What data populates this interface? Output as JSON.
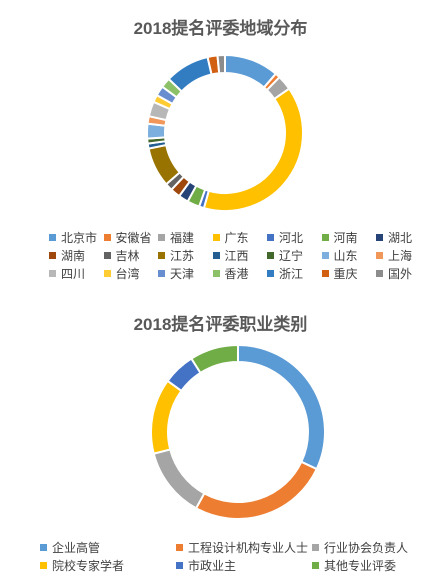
{
  "chart_data": [
    {
      "type": "donut",
      "title": "2018提名评委地域分布",
      "legend_position": "bottom",
      "series": [
        {
          "name": "北京市",
          "value": 11,
          "color": "#5B9BD5"
        },
        {
          "name": "安徽省",
          "value": 1,
          "color": "#ED7D31"
        },
        {
          "name": "福建",
          "value": 3,
          "color": "#A5A5A5"
        },
        {
          "name": "广东",
          "value": 38,
          "color": "#FFC000"
        },
        {
          "name": "河北",
          "value": 1,
          "color": "#4472C4"
        },
        {
          "name": "河南",
          "value": 2.5,
          "color": "#70AD47"
        },
        {
          "name": "湖北",
          "value": 2,
          "color": "#264478"
        },
        {
          "name": "湖南",
          "value": 2,
          "color": "#9E480E"
        },
        {
          "name": "吉林",
          "value": 1.5,
          "color": "#636363"
        },
        {
          "name": "江苏",
          "value": 8,
          "color": "#997300"
        },
        {
          "name": "江西",
          "value": 1,
          "color": "#255E91"
        },
        {
          "name": "辽宁",
          "value": 1,
          "color": "#43682B"
        },
        {
          "name": "山东",
          "value": 3,
          "color": "#7CAFDD"
        },
        {
          "name": "上海",
          "value": 1.5,
          "color": "#F1975A"
        },
        {
          "name": "四川",
          "value": 3,
          "color": "#B7B7B7"
        },
        {
          "name": "台湾",
          "value": 1.5,
          "color": "#FFCD33"
        },
        {
          "name": "天津",
          "value": 2,
          "color": "#698ED0"
        },
        {
          "name": "香港",
          "value": 2,
          "color": "#8CC168"
        },
        {
          "name": "浙江",
          "value": 9,
          "color": "#327DC2"
        },
        {
          "name": "重庆",
          "value": 2,
          "color": "#D26012"
        },
        {
          "name": "国外",
          "value": 1.5,
          "color": "#8C8C8C"
        }
      ]
    },
    {
      "type": "donut",
      "title": "2018提名评委职业类别",
      "legend_position": "bottom",
      "series": [
        {
          "name": "企业高管",
          "value": 32,
          "color": "#5B9BD5"
        },
        {
          "name": "工程设计机构专业人士",
          "value": 26,
          "color": "#ED7D31"
        },
        {
          "name": "行业协会负责人",
          "value": 13,
          "color": "#A5A5A5"
        },
        {
          "name": "院校专家学者",
          "value": 14,
          "color": "#FFC000"
        },
        {
          "name": "市政业主",
          "value": 6,
          "color": "#4472C4"
        },
        {
          "name": "其他专业评委",
          "value": 9,
          "color": "#70AD47"
        }
      ]
    }
  ]
}
